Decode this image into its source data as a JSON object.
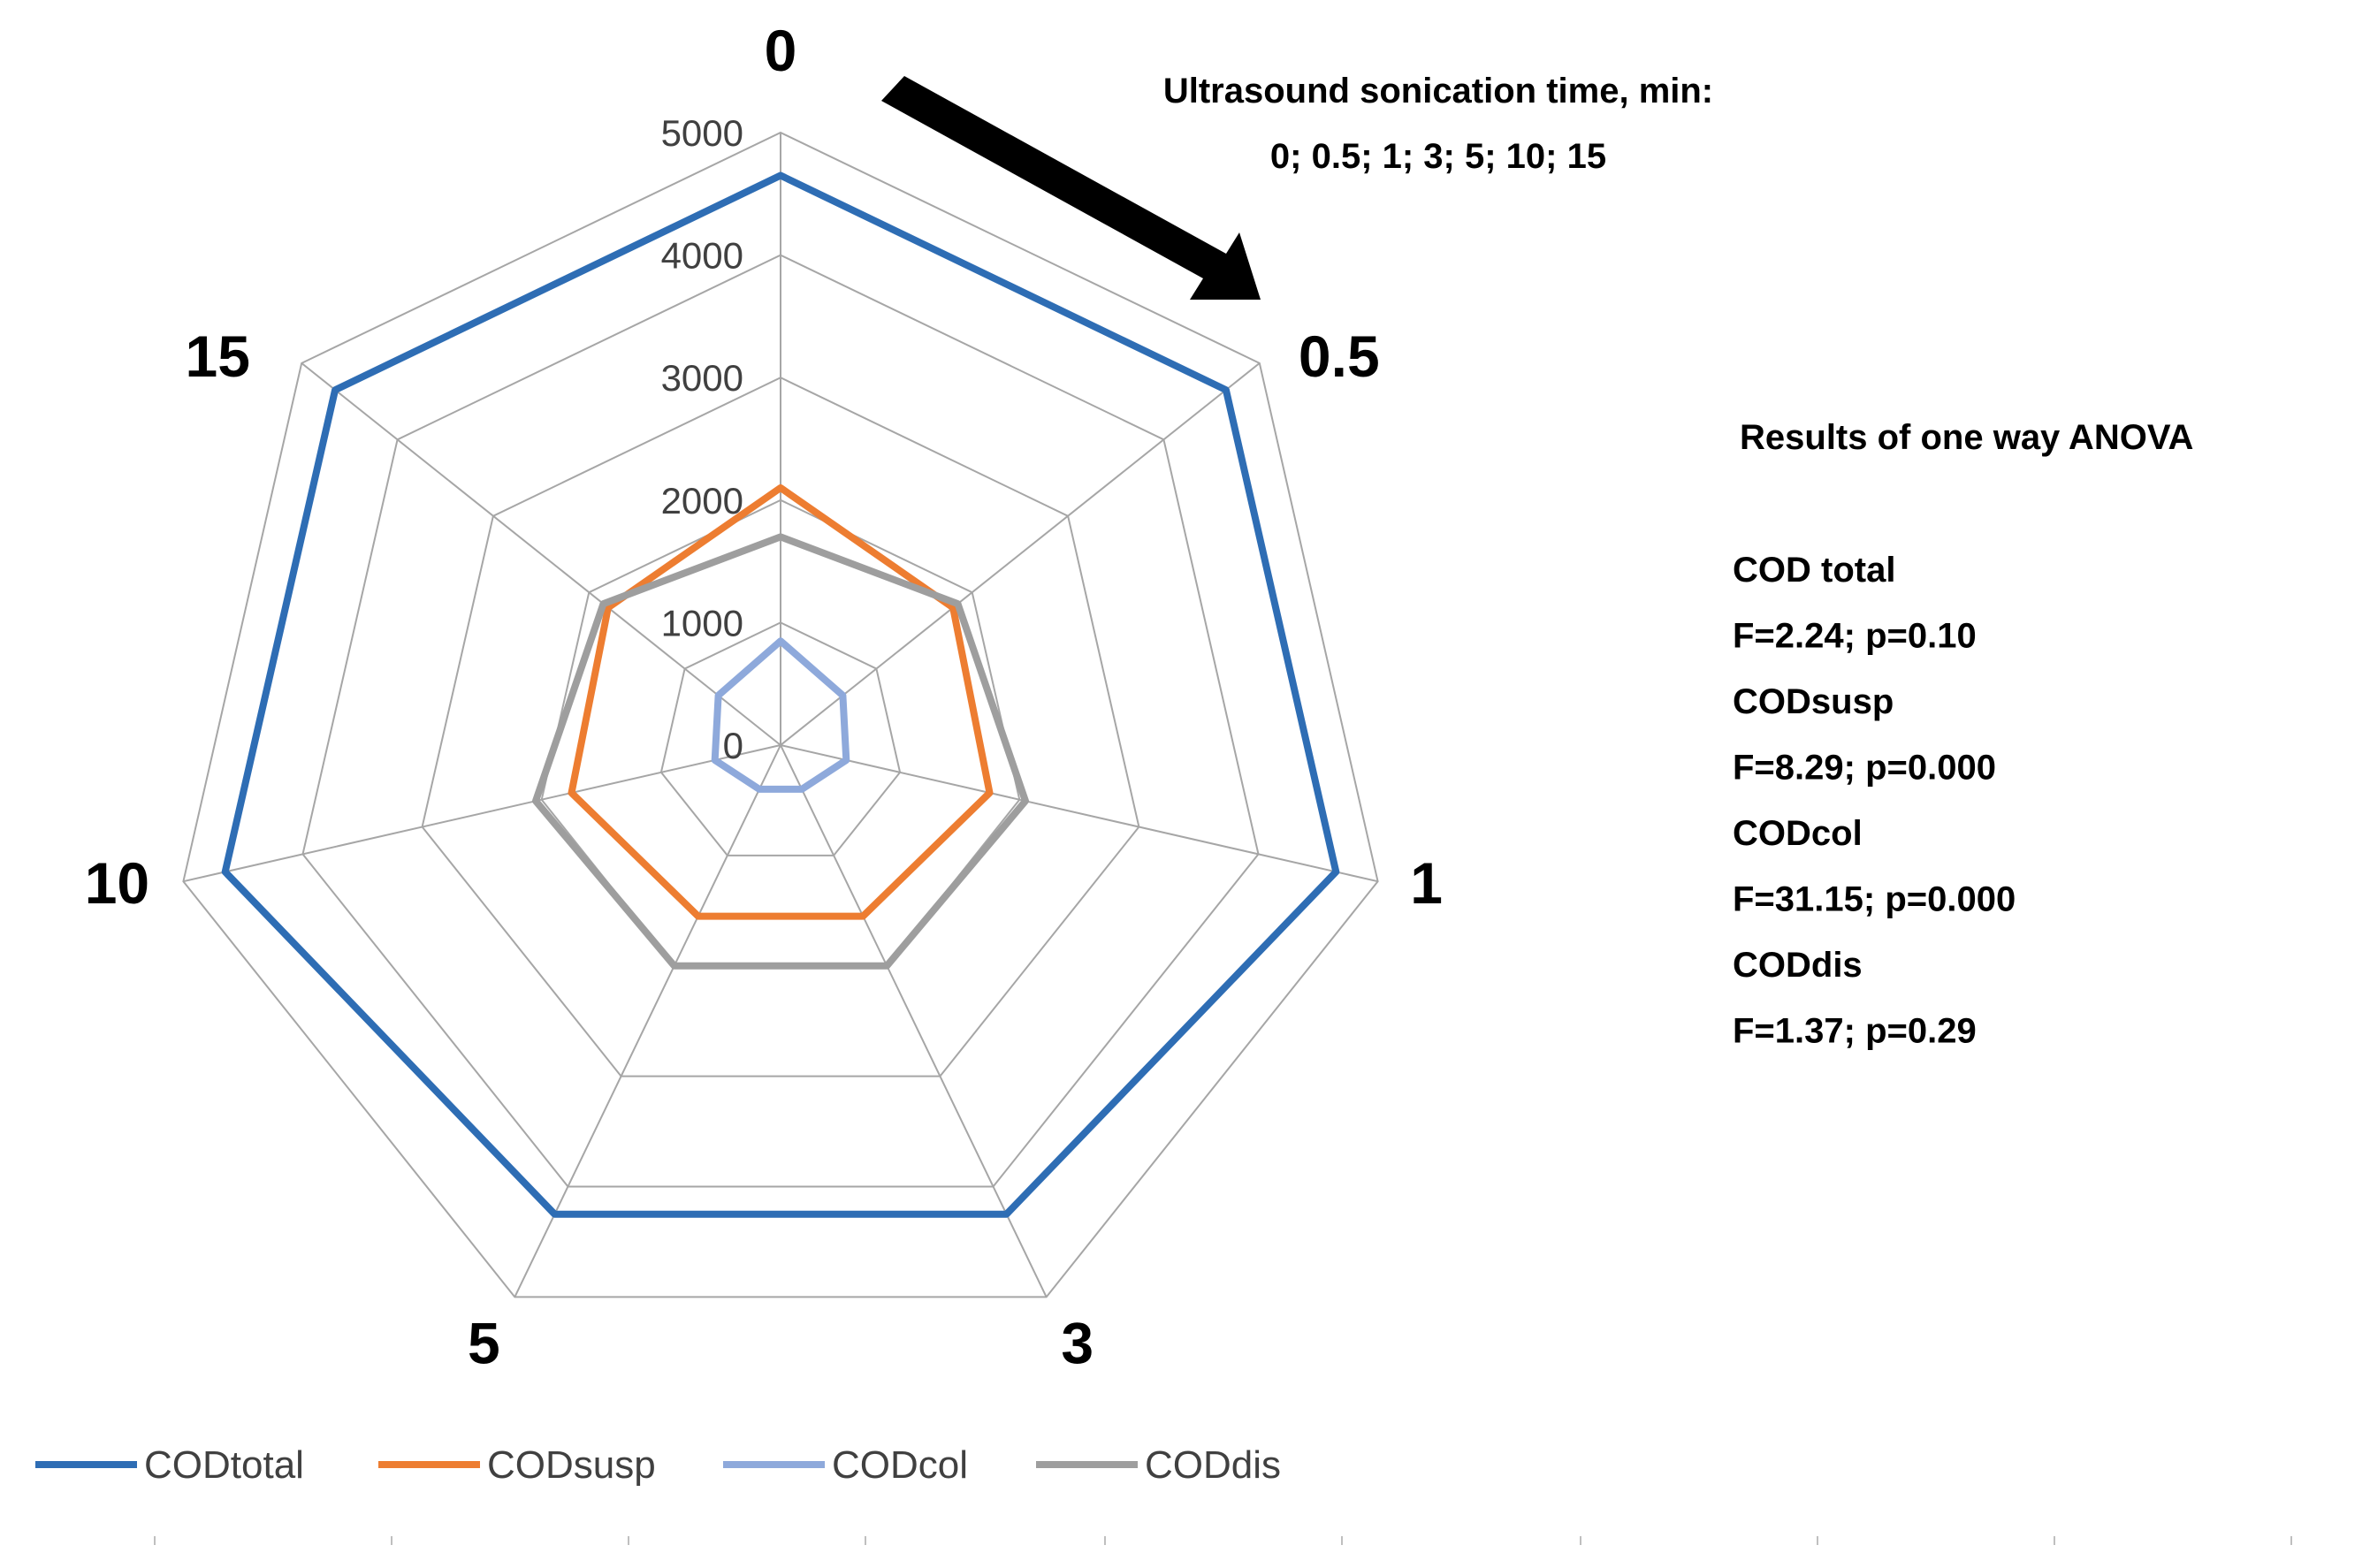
{
  "chart_data": {
    "type": "radar",
    "title": "",
    "categories": [
      "0",
      "0.5",
      "1",
      "3",
      "5",
      "10",
      "15"
    ],
    "axis": {
      "min": 0,
      "max": 5000,
      "major_unit": 1000,
      "tick_labels": [
        "0",
        "1000",
        "2000",
        "3000",
        "4000",
        "5000"
      ]
    },
    "series": [
      {
        "name": "CODtotal",
        "color": "#2e6db4",
        "values": [
          4650,
          4650,
          4650,
          4250,
          4250,
          4650,
          4650
        ]
      },
      {
        "name": "CODsusp",
        "color": "#ed7d31",
        "values": [
          2100,
          1800,
          1750,
          1550,
          1550,
          1750,
          1800
        ]
      },
      {
        "name": "CODcol",
        "color": "#8ea9db",
        "values": [
          850,
          650,
          550,
          400,
          400,
          550,
          650
        ]
      },
      {
        "name": "CODdis",
        "color": "#9e9e9e",
        "values": [
          1700,
          1850,
          2050,
          2000,
          2000,
          2050,
          1850
        ]
      }
    ],
    "legend_position": "bottom",
    "grid": true
  },
  "annotation": {
    "title_line1": "Ultrasound sonication time, min:",
    "title_line2": "0; 0.5; 1; 3; 5; 10; 15"
  },
  "anova": {
    "heading": "Results of  one way ANOVA",
    "entries": [
      {
        "label": "COD total",
        "stat": "F=2.24; p=0.10",
        "significant": false
      },
      {
        "label": "CODsusp",
        "stat": "F=8.29; p=0.000",
        "significant": true
      },
      {
        "label": "CODcol",
        "stat": "F=31.15; p=0.000",
        "significant": true
      },
      {
        "label": "CODdis",
        "stat": "F=1.37; p=0.29",
        "significant": false
      }
    ],
    "significant_color": "#ff0000",
    "normal_color": "#000000"
  }
}
